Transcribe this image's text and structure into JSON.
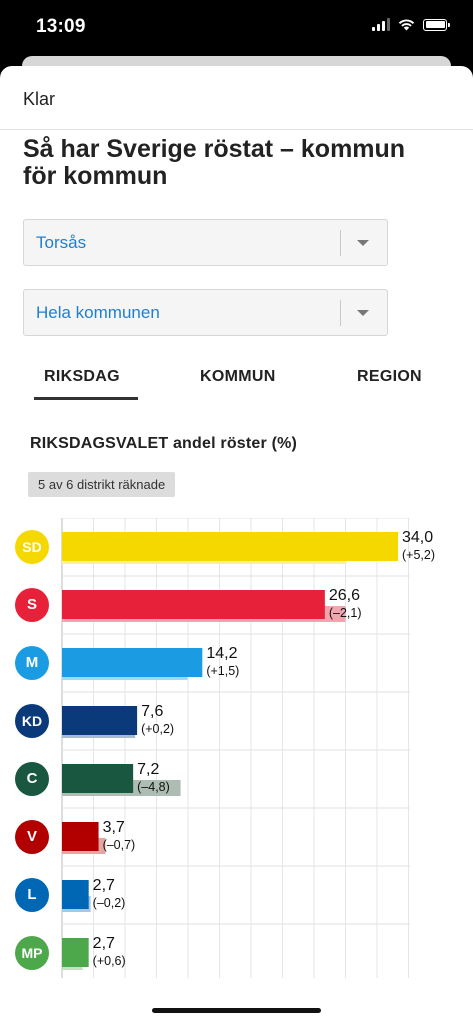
{
  "status_bar": {
    "time": "13:09"
  },
  "header": {
    "done_label": "Klar"
  },
  "page_title": "Så har Sverige röstat – kommun för kommun",
  "selects": {
    "municipality": "Torsås",
    "district": "Hela kommunen"
  },
  "tabs": [
    {
      "label": "RIKSDAG",
      "active": true
    },
    {
      "label": "KOMMUN",
      "active": false
    },
    {
      "label": "REGION",
      "active": false
    }
  ],
  "section_title": "RIKSDAGSVALET andel röster (%)",
  "counted_badge": "5 av 6 distrikt räknade",
  "chart_data": {
    "type": "bar",
    "orientation": "horizontal",
    "title": "RIKSDAGSVALET andel röster (%)",
    "xlim": [
      0,
      34
    ],
    "grid": true,
    "categories": [
      "SD",
      "S",
      "M",
      "KD",
      "C",
      "V",
      "L",
      "MP"
    ],
    "series": [
      {
        "values": [
          34.0,
          26.6,
          14.2,
          7.6,
          7.2,
          3.7,
          2.7,
          2.7
        ]
      },
      {
        "values": [
          28.8,
          28.7,
          12.7,
          7.4,
          12.0,
          4.4,
          2.9,
          2.1
        ]
      }
    ],
    "value_labels": [
      "34,0",
      "26,6",
      "14,2",
      "7,6",
      "7,2",
      "3,7",
      "2,7",
      "2,7"
    ],
    "change_labels": [
      "(+5,2)",
      "(–2,1)",
      "(+1,5)",
      "(+0,2)",
      "(–4,8)",
      "(–0,7)",
      "(–0,2)",
      "(+0,6)"
    ],
    "colors": [
      "#f5d800",
      "#e8213b",
      "#1b9ce2",
      "#0a3a7a",
      "#1a5740",
      "#b20000",
      "#0067b5",
      "#4ca84b"
    ],
    "previous_colors": [
      "#fbef9a",
      "#f1a5ae",
      "#a5d7f2",
      "#a6bad0",
      "#aebdb3",
      "#e4a5a5",
      "#a7c7e4",
      "#c4e0c1"
    ]
  }
}
